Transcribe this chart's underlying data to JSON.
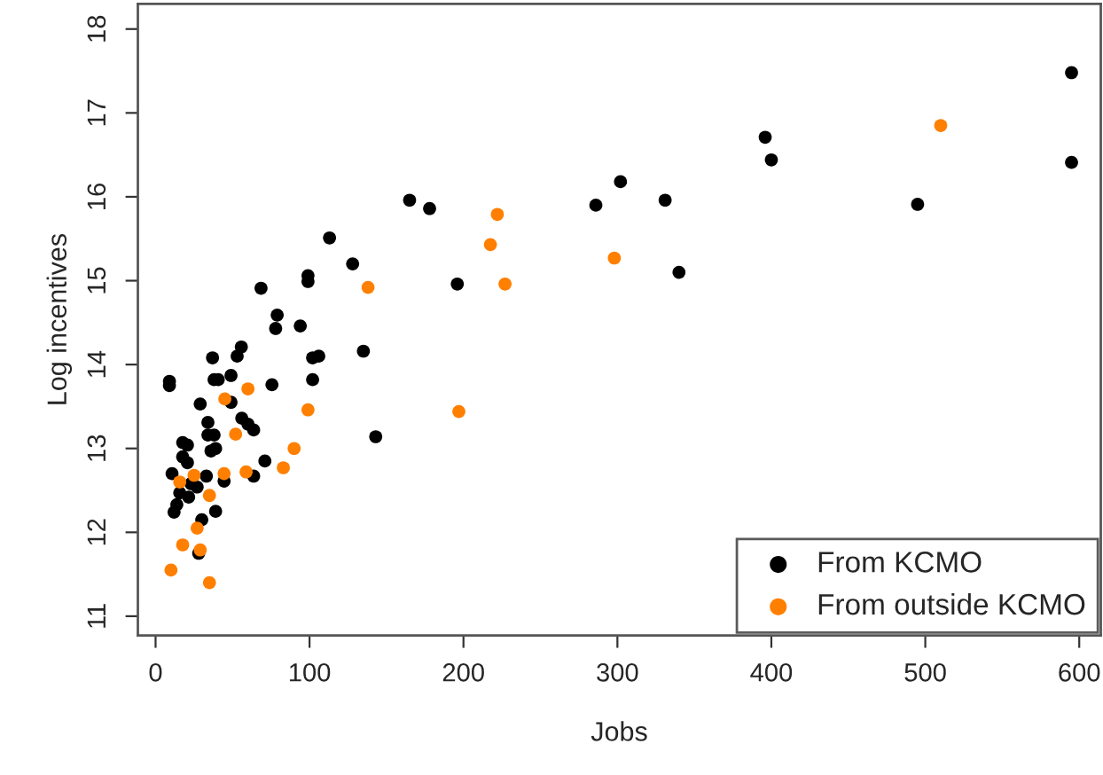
{
  "chart_data": {
    "type": "scatter",
    "xlabel": "Jobs",
    "ylabel": "Log incentives",
    "xlim": [
      -11.5,
      614
    ],
    "ylim": [
      10.77,
      18.3
    ],
    "xticks": [
      0,
      100,
      200,
      300,
      400,
      500,
      600
    ],
    "yticks": [
      11,
      12,
      13,
      14,
      15,
      16,
      17,
      18
    ],
    "grid": false,
    "legend": "bottom right",
    "marker": "circle",
    "series": [
      {
        "name": "From KCMO",
        "color": "#000000",
        "x": [
          595,
          595,
          396,
          400,
          495,
          302,
          286,
          331,
          340,
          165,
          178,
          196,
          113,
          128,
          99,
          99,
          68.5,
          79,
          78,
          94,
          55.7,
          53,
          37,
          102,
          106,
          135,
          9,
          9,
          38,
          40.7,
          49,
          75.6,
          102,
          29,
          49,
          34,
          56,
          60,
          63.7,
          38,
          34,
          17.6,
          20.7,
          39,
          36,
          143,
          17.6,
          20.7,
          10.7,
          33,
          23,
          27,
          44.5,
          63.7,
          71,
          15.7,
          21.5,
          13.8,
          12,
          30,
          39,
          28
        ],
        "values": [
          17.48,
          16.41,
          16.71,
          16.44,
          15.91,
          16.18,
          15.9,
          15.96,
          15.1,
          15.96,
          15.86,
          14.96,
          15.51,
          15.2,
          15.06,
          14.99,
          14.91,
          14.59,
          14.43,
          14.46,
          14.21,
          14.1,
          14.08,
          14.08,
          14.1,
          14.16,
          13.8,
          13.75,
          13.82,
          13.82,
          13.87,
          13.76,
          13.82,
          13.53,
          13.55,
          13.31,
          13.36,
          13.29,
          13.22,
          13.16,
          13.16,
          13.07,
          13.04,
          13.0,
          12.97,
          13.14,
          12.9,
          12.83,
          12.7,
          12.67,
          12.58,
          12.54,
          12.61,
          12.67,
          12.85,
          12.47,
          12.42,
          12.33,
          12.24,
          12.15,
          12.25,
          11.75
        ]
      },
      {
        "name": "From outside KCMO",
        "color": "#ff7f00",
        "x": [
          510,
          222,
          217.5,
          227,
          298,
          138,
          197,
          45,
          60,
          52,
          99,
          90,
          83,
          58.8,
          44.5,
          25,
          15.7,
          35,
          27,
          17.6,
          29,
          10,
          35
        ],
        "values": [
          16.85,
          15.79,
          15.43,
          14.96,
          15.27,
          14.92,
          13.44,
          13.59,
          13.71,
          13.17,
          13.46,
          13.0,
          12.77,
          12.72,
          12.7,
          12.68,
          12.6,
          12.44,
          12.05,
          11.85,
          11.79,
          11.55,
          11.4
        ]
      }
    ]
  }
}
